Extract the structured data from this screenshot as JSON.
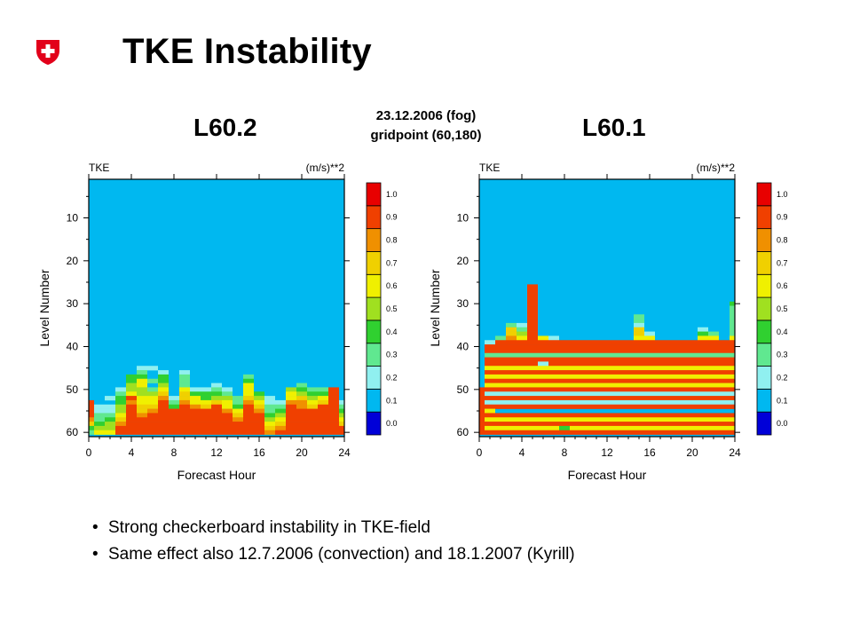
{
  "header": {
    "title": "TKE Instability",
    "logo_icon": "swiss-cross-icon",
    "logo_color": "#e2001a"
  },
  "case": {
    "date_line": "23.12.2006 (fog)",
    "gridpoint_line": "gridpoint (60,180)"
  },
  "colors": {
    "levels": [
      "#0000d8",
      "#00b8f0",
      "#90f0f0",
      "#60e890",
      "#30d030",
      "#a0e020",
      "#f0f000",
      "#f0d000",
      "#f09000",
      "#f04000",
      "#e80000"
    ],
    "level_labels": [
      "0.0",
      "0.1",
      "0.2",
      "0.3",
      "0.4",
      "0.5",
      "0.6",
      "0.7",
      "0.8",
      "0.9",
      "1.0"
    ]
  },
  "chart_data": [
    {
      "type": "heatmap",
      "heading": "L60.2",
      "title": "TKE",
      "units": "(m/s)**2",
      "xlabel": "Forecast Hour",
      "ylabel": "Level Number",
      "xlim": [
        0,
        24
      ],
      "ylim": [
        61,
        1
      ],
      "xticks": [
        "0",
        "4",
        "8",
        "12",
        "16",
        "20",
        "24"
      ],
      "yticks": [
        "10",
        "20",
        "30",
        "40",
        "50",
        "60"
      ],
      "colorbar_labels": [
        "1.0",
        "0.9",
        "0.8",
        "0.7",
        "0.6",
        "0.5",
        "0.4",
        "0.3",
        "0.2",
        "0.1",
        "0.0"
      ],
      "x_hours": [
        0,
        1,
        2,
        3,
        4,
        5,
        6,
        7,
        8,
        9,
        10,
        11,
        12,
        13,
        14,
        15,
        16,
        17,
        18,
        19,
        20,
        21,
        22,
        23,
        24
      ],
      "levels": [
        44,
        45,
        46,
        47,
        48,
        49,
        50,
        51,
        52,
        53,
        54,
        55,
        56,
        57,
        58,
        59,
        60
      ],
      "background_level": 1,
      "grid": [
        "1111111111111111111111111",
        "1111122111111111111111111",
        "1111131212111111111111111",
        "1111441413111113111111111",
        "1111463413111114111111111",
        "1111561513112116111131111",
        "1112553616223216111543391",
        "1113655717444316411654491",
        "1124966827645537521675691",
        "9114866938667638622886792",
        "9225977949879649733987993",
        "9225978999999869834999994",
        "9336989999999979945999995",
        "8347999999999989956999996",
        "7458999999999999967999997",
        "4559999999999999978999999",
        "3669999999999999989999999"
      ]
    },
    {
      "type": "heatmap",
      "heading": "L60.1",
      "title": "TKE",
      "units": "(m/s)**2",
      "xlabel": "Forecast Hour",
      "ylabel": "Level Number",
      "xlim": [
        0,
        24
      ],
      "ylim": [
        61,
        1
      ],
      "xticks": [
        "0",
        "4",
        "8",
        "12",
        "16",
        "20",
        "24"
      ],
      "yticks": [
        "10",
        "20",
        "30",
        "40",
        "50",
        "60"
      ],
      "colorbar_labels": [
        "1.0",
        "0.9",
        "0.8",
        "0.7",
        "0.6",
        "0.5",
        "0.4",
        "0.3",
        "0.2",
        "0.1",
        "0.0"
      ],
      "x_hours": [
        0,
        1,
        2,
        3,
        4,
        5,
        6,
        7,
        8,
        9,
        10,
        11,
        12,
        13,
        14,
        15,
        16,
        17,
        18,
        19,
        20,
        21,
        22,
        23,
        24
      ],
      "levels": [
        26,
        27,
        28,
        29,
        30,
        31,
        32,
        33,
        34,
        35,
        36,
        37,
        38,
        39,
        40,
        41,
        42,
        43,
        44,
        45,
        46,
        47,
        48,
        49,
        50,
        51,
        52,
        53,
        54,
        55,
        56,
        57,
        58,
        59,
        60
      ],
      "background_level": 1,
      "grid": [
        "1111191111111111111111111",
        "1111191111111111111111111",
        "1111191111111111111111111",
        "1111191111111111111111111",
        "1111191111111111111111114",
        "1111191111111111111111113",
        "1111191111111111111111113",
        "1111191111111113111111113",
        "1111191111111113111111113",
        "1113291111111112111111113",
        "1117391111111117111112113",
        "1117591111111117211114313",
        "1138696211111116611116616",
        "1299999999999999999999999",
        "1999999999999999999999999",
        "1999999999999999999999999",
        "1333333333333333333333333",
        "1999999999999999999999999",
        "1999992999999999999999999",
        "1666666666666666666666666",
        "1999999999999999999999999",
        "1666666666666666666666666",
        "1999999999999999999999999",
        "1666666666666666666666666",
        "9999999999999999999999999",
        "9222222222222222222222222",
        "9999999999999999999999999",
        "9222222222222222222222222",
        "9999999999999999999999999",
        "9611111111111111111111111",
        "9999999999999999999999999",
        "9666666666666666666666666",
        "9999999999999999999999999",
        "9666666646666666666666666",
        "9999999999999999999999999"
      ]
    }
  ],
  "bullets": [
    "Strong checkerboard instability in TKE-field",
    "Same effect also 12.7.2006 (convection) and 18.1.2007 (Kyrill)"
  ]
}
